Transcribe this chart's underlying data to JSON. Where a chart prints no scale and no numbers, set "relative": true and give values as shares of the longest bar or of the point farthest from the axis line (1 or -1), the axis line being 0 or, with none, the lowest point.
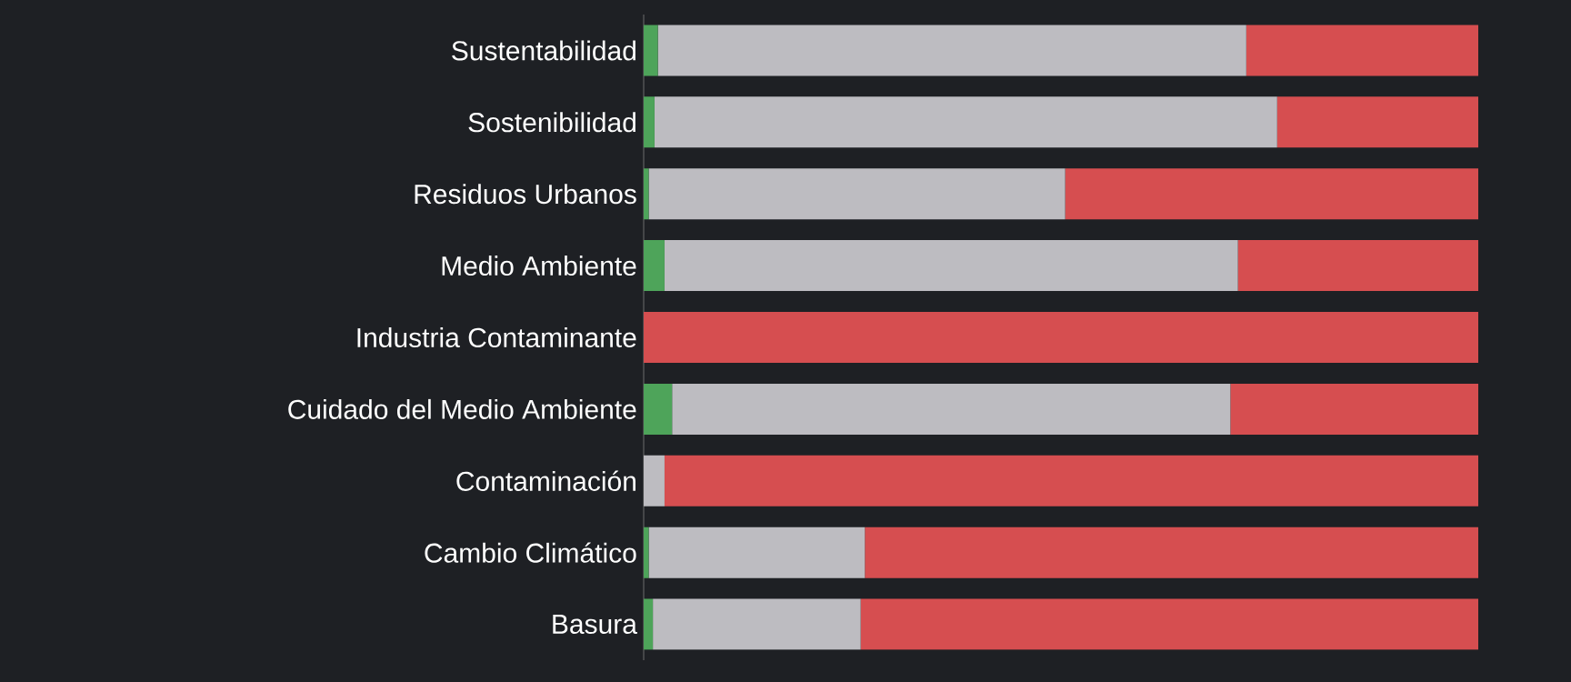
{
  "chart_data": {
    "type": "bar",
    "orientation": "horizontal",
    "stacked": true,
    "relative": true,
    "categories": [
      "Sustentabilidad",
      "Sostenibilidad",
      "Residuos Urbanos",
      "Medio Ambiente",
      "Industria Contaminante",
      "Cuidado del Medio Ambiente",
      "Contaminación",
      "Cambio Climático",
      "Basura"
    ],
    "series": [
      {
        "color": "#4ea45a",
        "values": [
          0.017,
          0.013,
          0.006,
          0.025,
          0,
          0.034,
          0,
          0.006,
          0.011
        ]
      },
      {
        "color": "#bdbcc1",
        "values": [
          0.705,
          0.746,
          0.499,
          0.687,
          0,
          0.669,
          0.025,
          0.259,
          0.249
        ]
      },
      {
        "color": "#d64e50",
        "values": [
          0.278,
          0.241,
          0.495,
          0.288,
          1.0,
          0.297,
          0.975,
          0.735,
          0.74
        ]
      }
    ]
  }
}
